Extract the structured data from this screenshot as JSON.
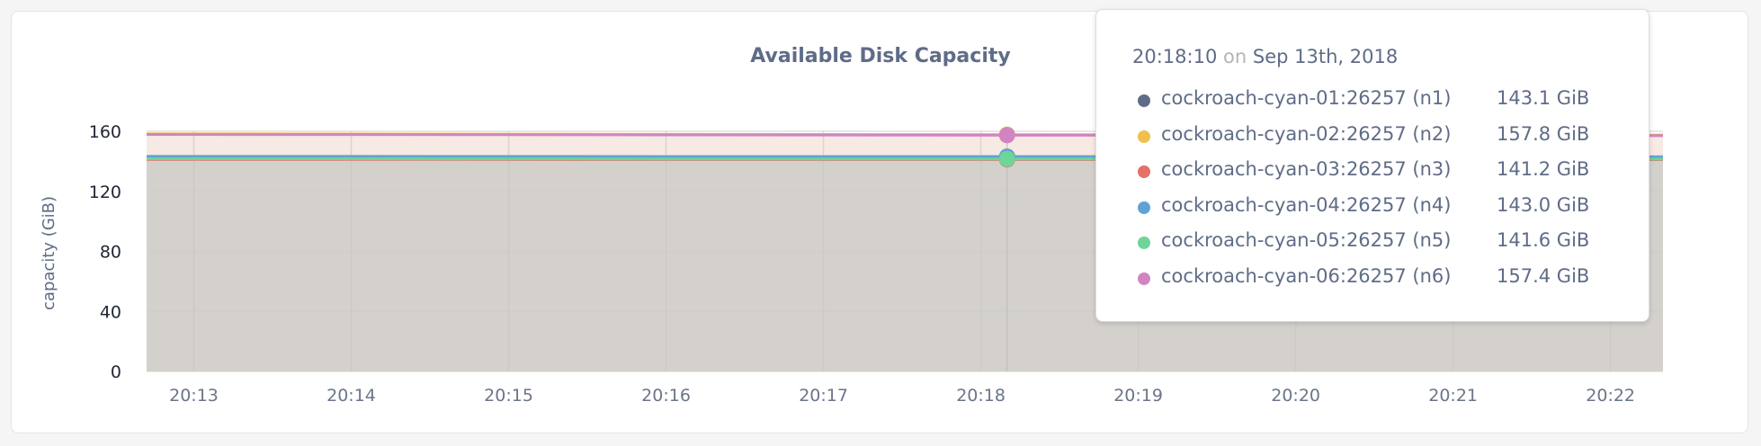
{
  "chart_data": {
    "type": "area",
    "title": "Available Disk Capacity",
    "ylabel": "capacity (GiB)",
    "xlabel": "",
    "ylim": [
      0,
      160
    ],
    "yticks": [
      "0",
      "40",
      "80",
      "120",
      "160"
    ],
    "xlim": [
      "20:12:42",
      "20:22:20"
    ],
    "xticks": [
      "20:13",
      "20:14",
      "20:15",
      "20:16",
      "20:17",
      "20:18",
      "20:19",
      "20:20",
      "20:21",
      "20:22"
    ],
    "grid": true,
    "x": [
      "20:12:42",
      "20:14:00",
      "20:16:00",
      "20:18:10",
      "20:20:00",
      "20:22:20"
    ],
    "series": [
      {
        "name": "cockroach-cyan-01:26257 (n1)",
        "color": "#5f6c87",
        "values": [
          143.2,
          143.2,
          143.1,
          143.1,
          143.1,
          143.0
        ]
      },
      {
        "name": "cockroach-cyan-02:26257 (n2)",
        "color": "#f0c04b",
        "values": [
          158.3,
          158.2,
          158.0,
          157.8,
          157.7,
          157.5
        ]
      },
      {
        "name": "cockroach-cyan-03:26257 (n3)",
        "color": "#e5706a",
        "values": [
          141.3,
          141.3,
          141.2,
          141.2,
          141.2,
          141.1
        ]
      },
      {
        "name": "cockroach-cyan-04:26257 (n4)",
        "color": "#5fa3d6",
        "values": [
          143.1,
          143.1,
          143.0,
          143.0,
          143.0,
          142.9
        ]
      },
      {
        "name": "cockroach-cyan-05:26257 (n5)",
        "color": "#6fd498",
        "values": [
          141.7,
          141.7,
          141.6,
          141.6,
          141.6,
          141.5
        ]
      },
      {
        "name": "cockroach-cyan-06:26257 (n6)",
        "color": "#d085c0",
        "values": [
          157.9,
          157.8,
          157.6,
          157.4,
          157.3,
          157.1
        ]
      }
    ],
    "hover": {
      "time": "20:18:10",
      "on": "on",
      "date": "Sep 13th, 2018",
      "values": [
        "143.1 GiB",
        "157.8 GiB",
        "141.2 GiB",
        "143.0 GiB",
        "141.6 GiB",
        "157.4 GiB"
      ]
    }
  }
}
